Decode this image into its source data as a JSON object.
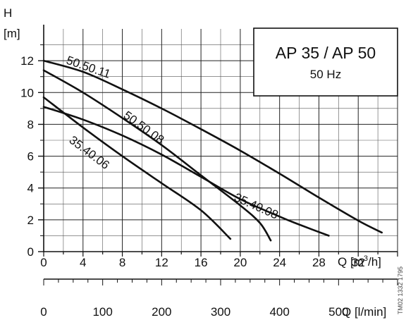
{
  "chart_data": {
    "type": "line",
    "title": "AP 35 / AP 50",
    "subtitle": "50 Hz",
    "ylabel": "H",
    "ylabel_unit": "[m]",
    "xlabel": "Q [m³/h]",
    "x2label": "Q [l/min]",
    "xlim": [
      0,
      36
    ],
    "ylim": [
      0,
      14
    ],
    "x_ticks": [
      0,
      4,
      8,
      12,
      16,
      20,
      24,
      28,
      32
    ],
    "x_minor_step": 2,
    "y_ticks": [
      0,
      2,
      4,
      6,
      8,
      10,
      12
    ],
    "x2_ticks": [
      0,
      100,
      200,
      300,
      400,
      500
    ],
    "x2_ticks_labels": [
      "0",
      "100",
      "200",
      "300",
      "400",
      "500"
    ],
    "x2_minor_step": 25,
    "grid": true,
    "side_code": "TM02 1332 1795",
    "series": [
      {
        "name": "50.50.11",
        "points": [
          [
            0,
            12.0
          ],
          [
            4,
            11.3
          ],
          [
            8,
            10.2
          ],
          [
            12,
            9.0
          ],
          [
            16,
            7.7
          ],
          [
            20,
            6.35
          ],
          [
            24,
            4.9
          ],
          [
            28,
            3.4
          ],
          [
            32,
            1.95
          ],
          [
            34.4,
            1.2
          ]
        ]
      },
      {
        "name": "50.50.08",
        "points": [
          [
            0,
            11.4
          ],
          [
            4,
            10.0
          ],
          [
            8,
            8.4
          ],
          [
            12,
            6.7
          ],
          [
            16,
            4.8
          ],
          [
            20,
            2.9
          ],
          [
            22,
            1.8
          ],
          [
            23.1,
            0.7
          ]
        ]
      },
      {
        "name": "35.40.08",
        "points": [
          [
            0,
            9.1
          ],
          [
            4,
            8.3
          ],
          [
            8,
            7.3
          ],
          [
            12,
            6.1
          ],
          [
            16,
            4.7
          ],
          [
            20,
            3.3
          ],
          [
            24,
            2.2
          ],
          [
            26,
            1.7
          ],
          [
            29,
            1.0
          ]
        ]
      },
      {
        "name": "35.40.06",
        "points": [
          [
            0,
            9.7
          ],
          [
            4,
            7.8
          ],
          [
            8,
            6.0
          ],
          [
            12,
            4.3
          ],
          [
            16,
            2.6
          ],
          [
            19,
            0.8
          ]
        ]
      }
    ],
    "labels": [
      "50.50.11",
      "50.50.08",
      "35.40.08",
      "35.40.06"
    ]
  }
}
